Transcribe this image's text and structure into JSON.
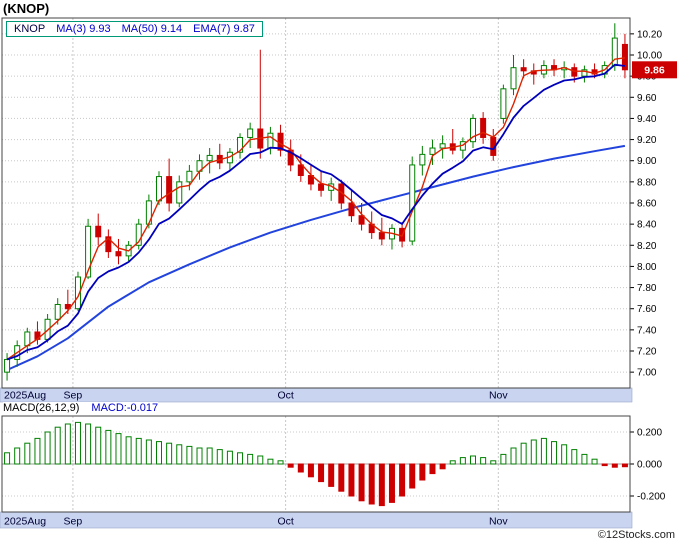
{
  "title": "(KNOP)",
  "legend": {
    "symbol": "KNOP",
    "items": [
      {
        "label": "MA(3)",
        "value": "9.93"
      },
      {
        "label": "MA(50)",
        "value": "9.14"
      },
      {
        "label": "EMA(7)",
        "value": "9.87"
      }
    ]
  },
  "macd_header": {
    "name": "MACD(26,12,9)",
    "current": "MACD:-0.017"
  },
  "watermark": "©12Stocks.com",
  "price_axis": {
    "ticks": [
      10.2,
      10.0,
      9.8,
      9.6,
      9.4,
      9.2,
      9.0,
      8.8,
      8.6,
      8.4,
      8.2,
      8.0,
      7.8,
      7.6,
      7.4,
      7.2,
      7.0
    ],
    "current_price": "9.86",
    "current_value": 9.86
  },
  "macd_axis": {
    "ticks": [
      {
        "label": "0.200",
        "value": 0.2
      },
      {
        "label": "0.000",
        "value": 0.0
      },
      {
        "label": "-0.200",
        "value": -0.2
      }
    ]
  },
  "colors": {
    "up": "#008000",
    "down": "#cc0000",
    "ma3": "#dd2200",
    "ema7": "#0000bb",
    "ma50": "#2244dd",
    "band_bg": "#c8d4f0",
    "band_border": "#9aa7c7",
    "grid": "#c8c8c8",
    "border": "#444444",
    "badge_bg": "#cc0000",
    "badge_text": "#ffffff",
    "axis_text": "#000033",
    "legend_border": "#009977",
    "blue_text": "#0000cc"
  },
  "chart_data": {
    "type": "candlestick",
    "symbol": "KNOP",
    "timeframe": "daily, Aug 2025 - Nov 2025",
    "price_ylim": [
      6.85,
      10.35
    ],
    "months": [
      {
        "label": "2025Aug",
        "start_index": 0
      },
      {
        "label": "Sep",
        "start_index": 7
      },
      {
        "label": "Oct",
        "start_index": 28
      },
      {
        "label": "Nov",
        "start_index": 49
      }
    ],
    "candles": [
      [
        7.0,
        7.18,
        6.92,
        7.12
      ],
      [
        7.12,
        7.3,
        7.05,
        7.25
      ],
      [
        7.25,
        7.42,
        7.18,
        7.38
      ],
      [
        7.38,
        7.48,
        7.26,
        7.31
      ],
      [
        7.31,
        7.55,
        7.28,
        7.5
      ],
      [
        7.5,
        7.7,
        7.45,
        7.64
      ],
      [
        7.64,
        7.78,
        7.55,
        7.6
      ],
      [
        7.6,
        7.95,
        7.58,
        7.9
      ],
      [
        7.9,
        8.45,
        7.88,
        8.38
      ],
      [
        8.38,
        8.5,
        8.2,
        8.28
      ],
      [
        8.28,
        8.35,
        8.08,
        8.14
      ],
      [
        8.14,
        8.26,
        8.02,
        8.1
      ],
      [
        8.1,
        8.24,
        8.05,
        8.2
      ],
      [
        8.2,
        8.45,
        8.16,
        8.4
      ],
      [
        8.4,
        8.68,
        8.36,
        8.62
      ],
      [
        8.62,
        8.9,
        8.58,
        8.85
      ],
      [
        8.85,
        9.02,
        8.52,
        8.6
      ],
      [
        8.6,
        8.86,
        8.56,
        8.8
      ],
      [
        8.8,
        8.96,
        8.72,
        8.9
      ],
      [
        8.9,
        9.06,
        8.82,
        9.0
      ],
      [
        9.0,
        9.12,
        8.88,
        9.05
      ],
      [
        9.05,
        9.16,
        8.92,
        8.98
      ],
      [
        8.98,
        9.12,
        8.9,
        9.08
      ],
      [
        9.08,
        9.26,
        9.02,
        9.22
      ],
      [
        9.22,
        9.36,
        9.12,
        9.3
      ],
      [
        9.3,
        10.05,
        9.02,
        9.12
      ],
      [
        9.12,
        9.32,
        9.06,
        9.26
      ],
      [
        9.26,
        9.34,
        9.04,
        9.1
      ],
      [
        9.1,
        9.2,
        8.9,
        8.96
      ],
      [
        8.96,
        9.06,
        8.8,
        8.86
      ],
      [
        8.86,
        8.96,
        8.72,
        8.78
      ],
      [
        8.78,
        8.9,
        8.66,
        8.72
      ],
      [
        8.72,
        8.84,
        8.62,
        8.78
      ],
      [
        8.78,
        8.82,
        8.54,
        8.6
      ],
      [
        8.6,
        8.72,
        8.42,
        8.48
      ],
      [
        8.48,
        8.6,
        8.34,
        8.4
      ],
      [
        8.4,
        8.52,
        8.26,
        8.32
      ],
      [
        8.32,
        8.46,
        8.2,
        8.26
      ],
      [
        8.26,
        8.4,
        8.16,
        8.36
      ],
      [
        8.36,
        8.42,
        8.18,
        8.24
      ],
      [
        8.24,
        9.04,
        8.2,
        8.96
      ],
      [
        8.96,
        9.14,
        8.86,
        9.06
      ],
      [
        9.06,
        9.2,
        8.96,
        9.12
      ],
      [
        9.12,
        9.24,
        9.02,
        9.16
      ],
      [
        9.16,
        9.3,
        9.06,
        9.1
      ],
      [
        9.1,
        9.22,
        9.02,
        9.18
      ],
      [
        9.18,
        9.44,
        9.12,
        9.4
      ],
      [
        9.4,
        9.46,
        9.16,
        9.22
      ],
      [
        9.22,
        9.3,
        9.0,
        9.05
      ],
      [
        9.4,
        9.72,
        9.35,
        9.68
      ],
      [
        9.68,
        10.0,
        9.62,
        9.88
      ],
      [
        9.88,
        9.96,
        9.78,
        9.85
      ],
      [
        9.85,
        9.92,
        9.72,
        9.82
      ],
      [
        9.82,
        9.95,
        9.78,
        9.9
      ],
      [
        9.9,
        9.96,
        9.8,
        9.86
      ],
      [
        9.86,
        9.94,
        9.78,
        9.88
      ],
      [
        9.88,
        9.92,
        9.74,
        9.8
      ],
      [
        9.8,
        9.9,
        9.74,
        9.86
      ],
      [
        9.86,
        9.92,
        9.78,
        9.82
      ],
      [
        9.82,
        9.94,
        9.78,
        9.9
      ],
      [
        9.9,
        10.3,
        9.85,
        10.16
      ],
      [
        10.1,
        10.2,
        9.78,
        9.86
      ]
    ],
    "overlays": [
      {
        "name": "MA(3)",
        "type": "sma",
        "window": 3,
        "last_value": 9.93
      },
      {
        "name": "EMA(7)",
        "type": "ema",
        "window": 7,
        "last_value": 9.87
      },
      {
        "name": "MA(50)",
        "type": "sma",
        "window": 50,
        "last_value": 9.14,
        "points": [
          [
            0,
            7.02
          ],
          [
            3,
            7.15
          ],
          [
            6,
            7.32
          ],
          [
            10,
            7.62
          ],
          [
            14,
            7.85
          ],
          [
            18,
            8.02
          ],
          [
            22,
            8.18
          ],
          [
            26,
            8.32
          ],
          [
            30,
            8.44
          ],
          [
            34,
            8.55
          ],
          [
            38,
            8.65
          ],
          [
            42,
            8.75
          ],
          [
            46,
            8.85
          ],
          [
            50,
            8.94
          ],
          [
            54,
            9.02
          ],
          [
            58,
            9.09
          ],
          [
            61,
            9.14
          ]
        ]
      }
    ],
    "macd": {
      "type": "bar",
      "params": "26,12,9",
      "last_value": -0.017,
      "ylim": [
        -0.3,
        0.3
      ],
      "values": [
        0.07,
        0.1,
        0.13,
        0.16,
        0.2,
        0.23,
        0.25,
        0.26,
        0.25,
        0.23,
        0.21,
        0.19,
        0.17,
        0.16,
        0.15,
        0.14,
        0.13,
        0.12,
        0.11,
        0.1,
        0.1,
        0.09,
        0.08,
        0.07,
        0.06,
        0.05,
        0.03,
        0.02,
        -0.02,
        -0.05,
        -0.08,
        -0.11,
        -0.14,
        -0.17,
        -0.2,
        -0.23,
        -0.25,
        -0.26,
        -0.24,
        -0.2,
        -0.15,
        -0.1,
        -0.06,
        -0.03,
        0.02,
        0.04,
        0.05,
        0.04,
        0.02,
        0.06,
        0.1,
        0.13,
        0.15,
        0.16,
        0.14,
        0.12,
        0.09,
        0.06,
        0.03,
        -0.01,
        -0.02,
        -0.017
      ]
    }
  }
}
